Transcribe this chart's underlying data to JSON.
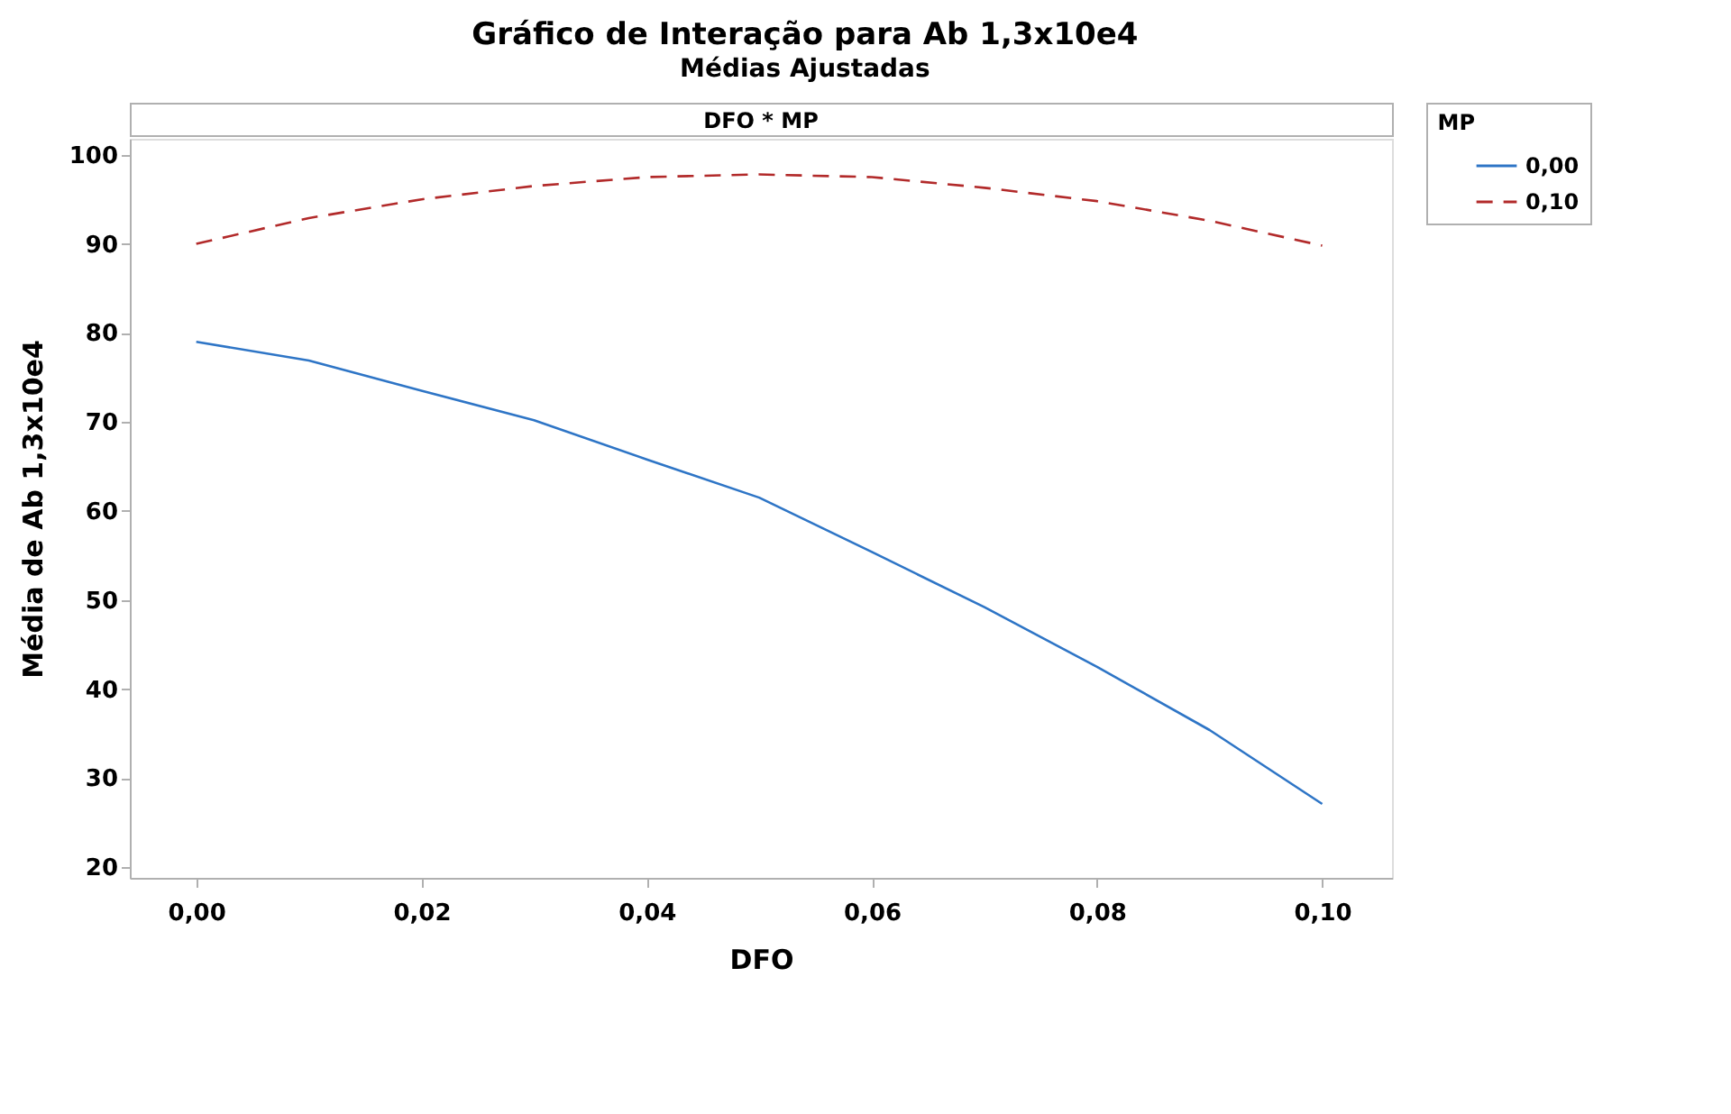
{
  "chart_data": {
    "type": "line",
    "title": "Gráfico de Interação para Ab 1,3x10e4",
    "subtitle": "Médias Ajustadas",
    "xlabel": "DFO",
    "ylabel": "Média de Ab 1,3x10e4",
    "legend_title": "MP",
    "annotations": [
      "DFO * MP"
    ],
    "x": [
      0,
      0.01,
      0.02,
      0.03,
      0.04,
      0.05,
      0.06,
      0.07,
      0.08,
      0.09,
      0.1
    ],
    "series": [
      {
        "name": "0,00",
        "color": "#2e75c6",
        "line_style": "solid",
        "values": [
          79.0,
          76.9,
          73.5,
          70.2,
          65.8,
          61.5,
          55.4,
          49.2,
          42.5,
          35.4,
          27.1
        ]
      },
      {
        "name": "0,10",
        "color": "#b22a2a",
        "line_style": "dashed",
        "values": [
          90.0,
          92.9,
          95.0,
          96.5,
          97.5,
          97.8,
          97.5,
          96.3,
          94.8,
          92.6,
          89.8
        ]
      }
    ],
    "xlim": [
      -0.0059,
      0.1062
    ],
    "ylim": [
      18.8,
      101.8
    ],
    "xticks": [
      {
        "value": 0,
        "label": "0,00"
      },
      {
        "value": 0.02,
        "label": "0,02"
      },
      {
        "value": 0.04,
        "label": "0,04"
      },
      {
        "value": 0.06,
        "label": "0,06"
      },
      {
        "value": 0.08,
        "label": "0,08"
      },
      {
        "value": 0.1,
        "label": "0,10"
      }
    ],
    "yticks": [
      20,
      30,
      40,
      50,
      60,
      70,
      80,
      90,
      100
    ],
    "grid": false,
    "legend": "top right"
  }
}
